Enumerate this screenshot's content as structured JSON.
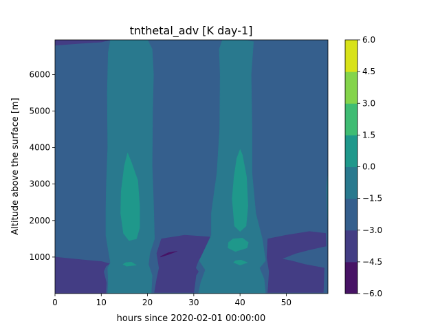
{
  "chart_data": {
    "type": "heatmap",
    "subtype": "filled-contour",
    "title": "tnthetal_adv [K day-1]",
    "xlabel": "hours since 2020-02-01 00:00:00",
    "ylabel": "Altitude above the surface [m]",
    "xlim": [
      0,
      59
    ],
    "ylim": [
      0,
      6950
    ],
    "x_ticks": [
      0,
      10,
      20,
      30,
      40,
      50
    ],
    "y_ticks": [
      1000,
      2000,
      3000,
      4000,
      5000,
      6000
    ],
    "colorbar": {
      "levels": [
        -6.0,
        -4.5,
        -3.0,
        -1.5,
        0.0,
        1.5,
        3.0,
        4.5,
        6.0
      ],
      "tick_labels": [
        "−6.0",
        "−4.5",
        "−3.0",
        "−1.5",
        "0.0",
        "1.5",
        "3.0",
        "4.5",
        "6.0"
      ],
      "colors": [
        "#471365",
        "#433d84",
        "#355f8d",
        "#29798e",
        "#1f988b",
        "#3fbc73",
        "#84d44b",
        "#d8e219"
      ]
    },
    "regions": [
      {
        "name": "background",
        "level_range": [
          -3.0,
          -1.5
        ],
        "polygon": [
          [
            0,
            0
          ],
          [
            59,
            0
          ],
          [
            59,
            6950
          ],
          [
            0,
            6950
          ]
        ]
      },
      {
        "name": "surface-band-left",
        "level_range": [
          -4.5,
          -3.0
        ],
        "polygon": [
          [
            0,
            10
          ],
          [
            11,
            10
          ],
          [
            11.1,
            300
          ],
          [
            10.5,
            600
          ],
          [
            11,
            750
          ],
          [
            11.8,
            820
          ],
          [
            10,
            880
          ],
          [
            8,
            900
          ],
          [
            4,
            950
          ],
          [
            0,
            1000
          ]
        ]
      },
      {
        "name": "surface-band-mid",
        "level_range": [
          -4.5,
          -3.0
        ],
        "polygon": [
          [
            21.5,
            30
          ],
          [
            30,
            30
          ],
          [
            30.5,
            500
          ],
          [
            31,
            600
          ],
          [
            30.4,
            700
          ],
          [
            30.9,
            870
          ],
          [
            33.7,
            1550
          ],
          [
            28,
            1600
          ],
          [
            23,
            1500
          ],
          [
            22,
            1100
          ],
          [
            22.5,
            700
          ],
          [
            22,
            400
          ]
        ]
      },
      {
        "name": "surface-band-right",
        "level_range": [
          -4.5,
          -3.0
        ],
        "polygon": [
          [
            46,
            30
          ],
          [
            58,
            30
          ],
          [
            58.2,
            700
          ],
          [
            54,
            800
          ],
          [
            51,
            900
          ],
          [
            49,
            950
          ],
          [
            52,
            1100
          ],
          [
            55,
            1200
          ],
          [
            58.6,
            1300
          ],
          [
            58.5,
            1650
          ],
          [
            55,
            1700
          ],
          [
            50,
            1600
          ],
          [
            46,
            1500
          ],
          [
            45.8,
            1000
          ],
          [
            46.3,
            600
          ]
        ]
      },
      {
        "name": "top-strip",
        "level_range": [
          -4.5,
          -3.0
        ],
        "polygon": [
          [
            0,
            6950
          ],
          [
            12,
            6950
          ],
          [
            10,
            6890
          ],
          [
            5,
            6850
          ],
          [
            0,
            6800
          ]
        ]
      },
      {
        "name": "plume-left",
        "level_range": [
          -1.5,
          0.0
        ],
        "polygon": [
          [
            11.4,
            0
          ],
          [
            20.8,
            0
          ],
          [
            21,
            500
          ],
          [
            20.2,
            800
          ],
          [
            20.5,
            1100
          ],
          [
            21.5,
            1500
          ],
          [
            21.3,
            2500
          ],
          [
            21,
            3500
          ],
          [
            21.1,
            5000
          ],
          [
            21.3,
            6000
          ],
          [
            21,
            6700
          ],
          [
            20,
            6950
          ],
          [
            12,
            6950
          ],
          [
            11.5,
            6600
          ],
          [
            11.3,
            5500
          ],
          [
            11.4,
            4000
          ],
          [
            11.1,
            3000
          ],
          [
            11,
            2300
          ],
          [
            11,
            1600
          ],
          [
            11.5,
            1200
          ],
          [
            12,
            850
          ],
          [
            11.4,
            700
          ],
          [
            11.5,
            300
          ]
        ]
      },
      {
        "name": "plume-right",
        "level_range": [
          -1.5,
          0.0
        ],
        "polygon": [
          [
            31,
            0
          ],
          [
            45.5,
            0
          ],
          [
            45.2,
            400
          ],
          [
            44.2,
            700
          ],
          [
            45.5,
            900
          ],
          [
            44.8,
            1500
          ],
          [
            43.4,
            2200
          ],
          [
            42.6,
            3300
          ],
          [
            42.6,
            4500
          ],
          [
            42.4,
            6000
          ],
          [
            42.9,
            6900
          ],
          [
            41,
            6950
          ],
          [
            36.2,
            6950
          ],
          [
            35.5,
            6700
          ],
          [
            35.7,
            6000
          ],
          [
            35.6,
            4500
          ],
          [
            35,
            3300
          ],
          [
            33.8,
            2200
          ],
          [
            33.8,
            1600
          ],
          [
            31.2,
            900
          ],
          [
            32.5,
            650
          ],
          [
            31.5,
            300
          ]
        ]
      },
      {
        "name": "edge-right",
        "level_range": [
          -1.5,
          0.0
        ],
        "polygon": [
          [
            59,
            1900
          ],
          [
            59,
            3300
          ],
          [
            58.7,
            2900
          ],
          [
            58.8,
            2400
          ]
        ]
      },
      {
        "name": "core-left-upper",
        "level_range": [
          0.0,
          1.5
        ],
        "polygon": [
          [
            14.8,
            1650
          ],
          [
            16,
            1450
          ],
          [
            17.6,
            1500
          ],
          [
            18.3,
            1800
          ],
          [
            18.3,
            2400
          ],
          [
            17.9,
            3100
          ],
          [
            16.5,
            3600
          ],
          [
            15.7,
            3850
          ],
          [
            15,
            3500
          ],
          [
            14.3,
            2800
          ],
          [
            14.2,
            2200
          ]
        ]
      },
      {
        "name": "core-left-lower",
        "level_range": [
          0.0,
          1.5
        ],
        "polygon": [
          [
            14.7,
            800
          ],
          [
            15.5,
            750
          ],
          [
            17.6,
            780
          ],
          [
            16.5,
            860
          ],
          [
            15.3,
            850
          ]
        ]
      },
      {
        "name": "core-right-upper",
        "level_range": [
          0.0,
          1.5
        ],
        "polygon": [
          [
            38.8,
            1850
          ],
          [
            40,
            1700
          ],
          [
            41.3,
            1850
          ],
          [
            41.7,
            2400
          ],
          [
            41.4,
            3200
          ],
          [
            40.5,
            3800
          ],
          [
            40,
            3950
          ],
          [
            39.3,
            3700
          ],
          [
            38.7,
            3200
          ],
          [
            38.3,
            2600
          ]
        ]
      },
      {
        "name": "core-right-mid",
        "level_range": [
          0.0,
          1.5
        ],
        "polygon": [
          [
            37.4,
            1250
          ],
          [
            39,
            1150
          ],
          [
            41.5,
            1250
          ],
          [
            41.8,
            1400
          ],
          [
            40.5,
            1520
          ],
          [
            38.5,
            1500
          ],
          [
            37.5,
            1400
          ]
        ]
      },
      {
        "name": "core-right-lower",
        "level_range": [
          0.0,
          1.5
        ],
        "polygon": [
          [
            38.6,
            850
          ],
          [
            40,
            780
          ],
          [
            41.6,
            850
          ],
          [
            40.2,
            920
          ],
          [
            39,
            900
          ]
        ]
      },
      {
        "name": "streak",
        "level_range": [
          -6.0,
          -4.5
        ],
        "polygon": [
          [
            22.8,
            1000
          ],
          [
            24.5,
            1070
          ],
          [
            26.4,
            1160
          ],
          [
            24.5,
            1120
          ],
          [
            22.9,
            1020
          ]
        ]
      }
    ]
  }
}
